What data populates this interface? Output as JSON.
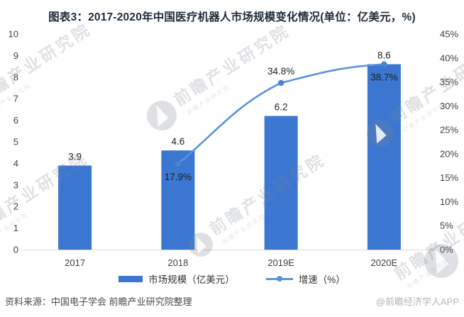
{
  "title": "图表3：2017-2020年中国医疗机器人市场规模变化情况(单位：亿美元，%)",
  "chart_data": {
    "type": "bar",
    "subtype": "combo-bar-line",
    "categories": [
      "2017",
      "2018",
      "2019E",
      "2020E"
    ],
    "series": [
      {
        "name": "市场规模（亿美元）",
        "type": "bar",
        "axis": "left",
        "color": "#3b76d1",
        "values": [
          3.9,
          4.6,
          6.2,
          8.6
        ],
        "labels": [
          "3.9",
          "4.6",
          "6.2",
          "8.6"
        ]
      },
      {
        "name": "增速（%）",
        "type": "line",
        "axis": "right",
        "color": "#5b93db",
        "marker_color": "#4a85d2",
        "values": [
          null,
          17.9,
          34.8,
          38.7
        ],
        "labels": [
          null,
          "17.9%",
          "34.8%",
          "38.7%"
        ],
        "label_placement": [
          null,
          "below",
          "above",
          "below"
        ]
      }
    ],
    "left_axis": {
      "min": 0,
      "max": 10,
      "step": 1,
      "ticks": [
        "0",
        "1",
        "2",
        "3",
        "4",
        "5",
        "6",
        "7",
        "8",
        "9",
        "10"
      ]
    },
    "right_axis": {
      "min": 0,
      "max": 45,
      "step": 5,
      "ticks": [
        "0%",
        "5%",
        "10%",
        "15%",
        "20%",
        "25%",
        "30%",
        "35%",
        "40%",
        "45%"
      ]
    },
    "grid": false,
    "legend_position": "bottom"
  },
  "legend": {
    "items": [
      {
        "label": "市场规模（亿美元）",
        "swatch": "bar",
        "color": "#3b76d1"
      },
      {
        "label": "增速（%）",
        "swatch": "line",
        "color": "#5b93db"
      }
    ]
  },
  "footer": {
    "source": "资料来源：中国电子学会 前瞻产业研究院整理",
    "credit": "@前瞻经济学人APP"
  },
  "watermark": {
    "text": "前瞻产业研究院"
  }
}
